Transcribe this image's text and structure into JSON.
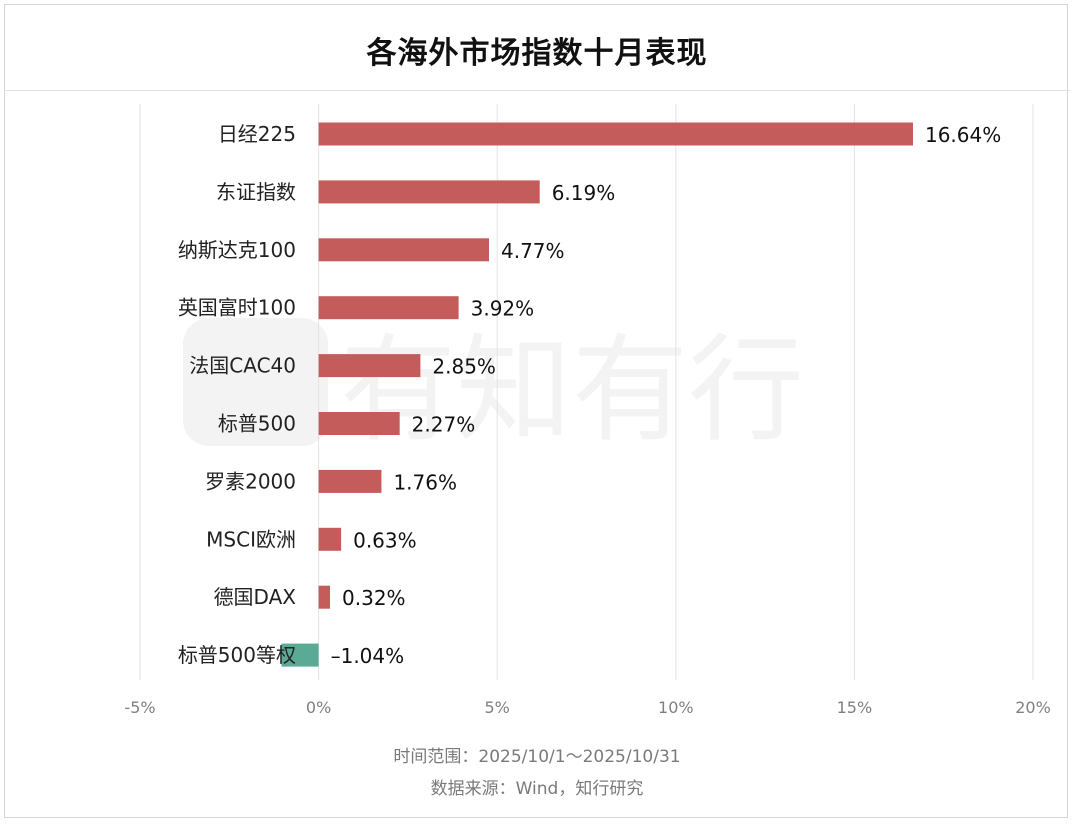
{
  "title": "各海外市场指数十月表现",
  "footer": {
    "time_range": "时间范围：2025/10/1～2025/10/31",
    "source": "数据来源：Wind，知行研究"
  },
  "watermark": "有知有行",
  "colors": {
    "positive": "#c45c5c",
    "negative": "#5aaa96",
    "grid": "#e3e3e3",
    "tick_text": "#808080",
    "label_text": "#222222",
    "watermark": "#f3f3f3"
  },
  "chart_data": {
    "type": "bar",
    "orientation": "horizontal",
    "categories": [
      "日经225",
      "东证指数",
      "纳斯达克100",
      "英国富时100",
      "法国CAC40",
      "标普500",
      "罗素2000",
      "MSCI欧洲",
      "德国DAX",
      "标普500等权"
    ],
    "values": [
      16.64,
      6.19,
      4.77,
      3.92,
      2.85,
      2.27,
      1.76,
      0.63,
      0.32,
      -1.04
    ],
    "value_labels": [
      "16.64%",
      "6.19%",
      "4.77%",
      "3.92%",
      "2.85%",
      "2.27%",
      "1.76%",
      "0.63%",
      "0.32%",
      "–1.04%"
    ],
    "unit": "%",
    "xlim": [
      -5,
      20
    ],
    "xticks": [
      -5,
      0,
      5,
      10,
      15,
      20
    ],
    "xtick_labels": [
      "-5%",
      "0%",
      "5%",
      "10%",
      "15%",
      "20%"
    ],
    "grid": "vertical"
  }
}
